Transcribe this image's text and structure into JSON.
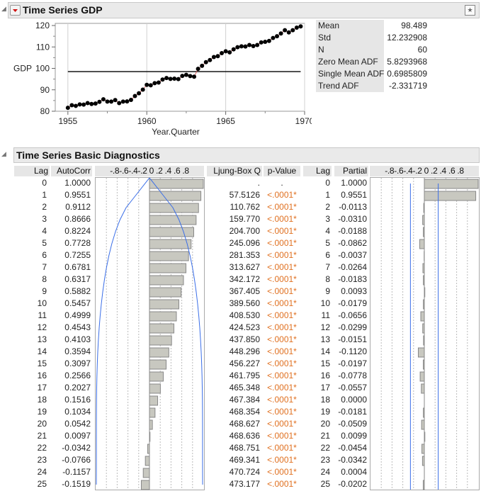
{
  "panel1": {
    "title": "Time Series GDP",
    "menu_icon": "red-triangle-menu-icon",
    "action_icon": "pin-icon"
  },
  "chart_data": {
    "type": "line",
    "title": "",
    "xlabel": "Year.Quarter",
    "ylabel": "GDP",
    "xlim": [
      1954.2,
      1970
    ],
    "ylim": [
      80,
      121
    ],
    "xticks": [
      "1955",
      "1960",
      "1965",
      "1970"
    ],
    "yticks": [
      "80",
      "90",
      "100",
      "110",
      "120"
    ],
    "grid": "vertical",
    "mean_line": 98.489,
    "series": [
      {
        "x_start": 1955,
        "x_step": 0.25,
        "values": [
          81.6,
          82.8,
          82.5,
          83.2,
          83.1,
          83.8,
          83.4,
          83.6,
          84.4,
          85.6,
          84.5,
          84.5,
          85.2,
          83.8,
          84.5,
          84.6,
          85.3,
          87.1,
          88.4,
          90.1,
          92.3,
          92.1,
          93.1,
          93.4,
          94.8,
          95.5,
          95.1,
          95.2,
          95.0,
          96.5,
          97.0,
          96.4,
          96.1,
          99.8,
          101.2,
          102.9,
          103.9,
          105.3,
          105.7,
          107.1,
          108.0,
          107.5,
          108.9,
          109.9,
          110.3,
          110.2,
          110.9,
          110.4,
          110.9,
          112.1,
          112.4,
          112.8,
          114.2,
          115.0,
          116.3,
          117.8,
          116.8,
          117.8,
          119.0,
          119.6
        ]
      }
    ],
    "colors": {
      "points": "#000000",
      "connect": "#d04040",
      "mean": "#000000"
    }
  },
  "stats": [
    {
      "label": "Mean",
      "value": "98.489"
    },
    {
      "label": "Std",
      "value": "12.232908"
    },
    {
      "label": "N",
      "value": "60"
    },
    {
      "label": "Zero Mean ADF",
      "value": "5.8293968"
    },
    {
      "label": "Single Mean ADF",
      "value": "0.6985809"
    },
    {
      "label": "Trend ADF",
      "value": "-2.331719"
    }
  ],
  "panel2": {
    "title": "Time Series Basic Diagnostics",
    "headers": {
      "lag": "Lag",
      "autocorr": "AutoCorr",
      "scale": "-.8-.6-.4-.2 0 .2 .4 .6 .8",
      "ljung": "Ljung-Box Q",
      "pvalue": "p-Value",
      "lag2": "Lag",
      "partial": "Partial",
      "scale2": "-.8-.6-.4-.2 0 .2 .4 .6 .8"
    },
    "n": 60,
    "colors": {
      "bar": "#c8c8c0",
      "limit": "#3a6ee8",
      "pvalue": "#e07020"
    },
    "rows": [
      {
        "lag": "0",
        "ac": 1.0,
        "acs": "1.0000",
        "q": ".",
        "p": ".",
        "pac": 1.0,
        "pacs": "1.0000"
      },
      {
        "lag": "1",
        "ac": 0.9551,
        "acs": "0.9551",
        "q": "57.5126",
        "p": "<.0001*",
        "pac": 0.9551,
        "pacs": "0.9551"
      },
      {
        "lag": "2",
        "ac": 0.9112,
        "acs": "0.9112",
        "q": "110.762",
        "p": "<.0001*",
        "pac": -0.0113,
        "pacs": "-0.0113"
      },
      {
        "lag": "3",
        "ac": 0.8666,
        "acs": "0.8666",
        "q": "159.770",
        "p": "<.0001*",
        "pac": -0.031,
        "pacs": "-0.0310"
      },
      {
        "lag": "4",
        "ac": 0.8224,
        "acs": "0.8224",
        "q": "204.700",
        "p": "<.0001*",
        "pac": -0.0188,
        "pacs": "-0.0188"
      },
      {
        "lag": "5",
        "ac": 0.7728,
        "acs": "0.7728",
        "q": "245.096",
        "p": "<.0001*",
        "pac": -0.0862,
        "pacs": "-0.0862"
      },
      {
        "lag": "6",
        "ac": 0.7255,
        "acs": "0.7255",
        "q": "281.353",
        "p": "<.0001*",
        "pac": -0.0037,
        "pacs": "-0.0037"
      },
      {
        "lag": "7",
        "ac": 0.6781,
        "acs": "0.6781",
        "q": "313.627",
        "p": "<.0001*",
        "pac": -0.0264,
        "pacs": "-0.0264"
      },
      {
        "lag": "8",
        "ac": 0.6317,
        "acs": "0.6317",
        "q": "342.172",
        "p": "<.0001*",
        "pac": -0.0183,
        "pacs": "-0.0183"
      },
      {
        "lag": "9",
        "ac": 0.5882,
        "acs": "0.5882",
        "q": "367.405",
        "p": "<.0001*",
        "pac": 0.0093,
        "pacs": "0.0093"
      },
      {
        "lag": "10",
        "ac": 0.5457,
        "acs": "0.5457",
        "q": "389.560",
        "p": "<.0001*",
        "pac": -0.0179,
        "pacs": "-0.0179"
      },
      {
        "lag": "11",
        "ac": 0.4999,
        "acs": "0.4999",
        "q": "408.530",
        "p": "<.0001*",
        "pac": -0.0656,
        "pacs": "-0.0656"
      },
      {
        "lag": "12",
        "ac": 0.4543,
        "acs": "0.4543",
        "q": "424.523",
        "p": "<.0001*",
        "pac": -0.0299,
        "pacs": "-0.0299"
      },
      {
        "lag": "13",
        "ac": 0.4103,
        "acs": "0.4103",
        "q": "437.850",
        "p": "<.0001*",
        "pac": -0.0151,
        "pacs": "-0.0151"
      },
      {
        "lag": "14",
        "ac": 0.3594,
        "acs": "0.3594",
        "q": "448.296",
        "p": "<.0001*",
        "pac": -0.112,
        "pacs": "-0.1120"
      },
      {
        "lag": "15",
        "ac": 0.3097,
        "acs": "0.3097",
        "q": "456.227",
        "p": "<.0001*",
        "pac": -0.0197,
        "pacs": "-0.0197"
      },
      {
        "lag": "16",
        "ac": 0.2566,
        "acs": "0.2566",
        "q": "461.795",
        "p": "<.0001*",
        "pac": -0.0778,
        "pacs": "-0.0778"
      },
      {
        "lag": "17",
        "ac": 0.2027,
        "acs": "0.2027",
        "q": "465.348",
        "p": "<.0001*",
        "pac": -0.0557,
        "pacs": "-0.0557"
      },
      {
        "lag": "18",
        "ac": 0.1516,
        "acs": "0.1516",
        "q": "467.384",
        "p": "<.0001*",
        "pac": 0.0,
        "pacs": "0.0000"
      },
      {
        "lag": "19",
        "ac": 0.1034,
        "acs": "0.1034",
        "q": "468.354",
        "p": "<.0001*",
        "pac": -0.0181,
        "pacs": "-0.0181"
      },
      {
        "lag": "20",
        "ac": 0.0542,
        "acs": "0.0542",
        "q": "468.627",
        "p": "<.0001*",
        "pac": -0.0509,
        "pacs": "-0.0509"
      },
      {
        "lag": "21",
        "ac": 0.0097,
        "acs": "0.0097",
        "q": "468.636",
        "p": "<.0001*",
        "pac": 0.0099,
        "pacs": "0.0099"
      },
      {
        "lag": "22",
        "ac": -0.0342,
        "acs": "-0.0342",
        "q": "468.751",
        "p": "<.0001*",
        "pac": -0.0454,
        "pacs": "-0.0454"
      },
      {
        "lag": "23",
        "ac": -0.0766,
        "acs": "-0.0766",
        "q": "469.341",
        "p": "<.0001*",
        "pac": -0.0342,
        "pacs": "-0.0342"
      },
      {
        "lag": "24",
        "ac": -0.1157,
        "acs": "-0.1157",
        "q": "470.724",
        "p": "<.0001*",
        "pac": 0.0004,
        "pacs": "0.0004"
      },
      {
        "lag": "25",
        "ac": -0.1519,
        "acs": "-0.1519",
        "q": "473.177",
        "p": "<.0001*",
        "pac": -0.0202,
        "pacs": "-0.0202"
      }
    ]
  }
}
